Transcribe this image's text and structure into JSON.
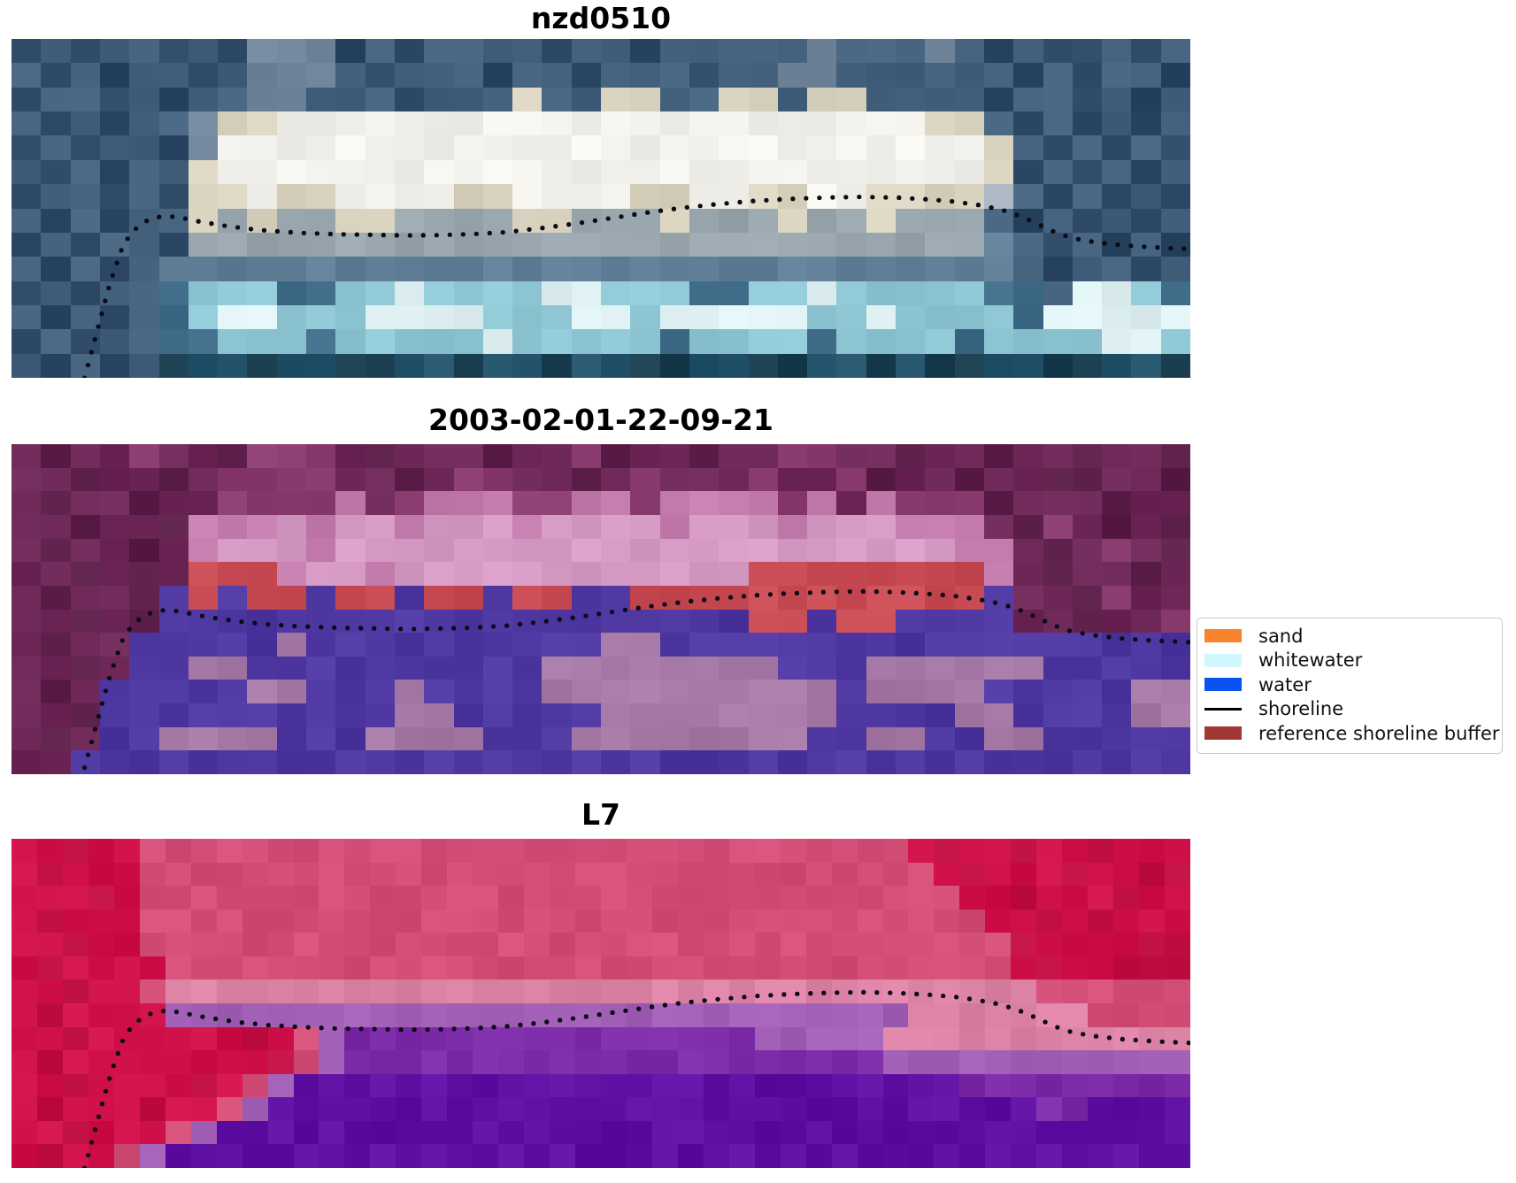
{
  "figure": {
    "background": "#ffffff"
  },
  "panels": [
    {
      "id": "nzd0510",
      "title": "nzd0510",
      "shoreline_y_offset": 0.0,
      "palette": {
        "A": "#2c4763",
        "B": "#44617e",
        "C": "#70859a",
        "D": "#a8b4c0",
        "E": "#d9d2bf",
        "W": "#f2f1ec",
        "G": "#98a5ad",
        "H": "#5f7e95",
        "M": "#3e6c88",
        "Q": "#8ec7d3",
        "L": "#dff0f2",
        "S": "#23536a",
        "T": "#1a3d4f"
      },
      "grid": [
        "ABABBABACCCABABBBBABBABBBBBCBBBCBABAABAB",
        "BABABBABCCCBABBBABBABBBABBCCBBBBBBABABBA",
        "ABBABABBCCBBBABBBEBBEEBBEEBEEBBBBABBABAB",
        "BABABBCEEWWWWWWWWWWWWWWWWWWWWWWEEBABABAB",
        "ABABBACWWWWWWWWWWWWWWWWWWWWWWWWWWEBABABA",
        "BABABBEWWWWWWWWWWWWWWWWWWWWWWWWWWEABABAB",
        "ABBABAEEWEEWWWWEEWWWWEEWWEEWWEEEEDBABABA",
        "BABABBEGEGGEEGGGGEEGGGEGGGEGGEGGGBABABAB",
        "ABABBAGGGGGGGGGGGGGGGGGGGGGGGGGGGHBABABA",
        "BABABHHHHHHHHHHHHHHHHHHHHHHHHHHHHHBABBAB",
        "ABABBMQQQMMQQLQQQQLLQQQMMQQLQQQQQMMBLLQM",
        "BABABMQLLQQQLLLLQQQLLQLLLLLQQLQQQQMLLLLL",
        "ABABBMMQQQMQQQQQLQQQQQMQQQQMQQQQMQQQQLLQ",
        "BABABTSSTSSTTSSTSSTSSTTSSTTSSTSTTSSTTSST"
      ]
    },
    {
      "id": "2003-02-01-22-09-21",
      "title": "2003-02-01-22-09-21",
      "shoreline_y_offset": -0.02,
      "palette": {
        "M": "#6e2857",
        "N": "#5c1f49",
        "O": "#8a3c70",
        "p": "#c47cad",
        "P": "#d59bc5",
        "r": "#c84b53",
        "I": "#4e37a0",
        "V": "#a678a5"
      },
      "grid": [
        "MNMMOMMNOOOMNMMMNMMONMMNMMOOMMNMMNMMNMMN",
        "MMNMMNMOOOOMMNMOOMMNMOMMMOMMONMMNMMNNMMN",
        "MNMMNMMOOOOpMOpppOOppOppppOpMpOOONMMMNMM",
        "MMNMMNpppPpPPpPPPpPPPPpPPPpPPPpppMNOMNMN",
        "MNMMNMpPPPpPPPPPPPPPPPPPPPPPPPPPppMNMOMN",
        "MMNMNMrrrpPPpPPPPPPPPPPPPrrrrrrrrpMNMMNM",
        "MNMMNIrIrrIrrIrrIrrIIrrrrrrrrrrrrIMMNOMM",
        "MMNMNIIIIIIIIIIIIIIIIIIIIrrIrrIIIIMMNMMO",
        "MNMMIIIIIVIIIIIIIIIIVVIIIIIIIIIIIIIIIIII",
        "MMNMIIVVIIIIIIIIIIVVVVVVVVIIIVVVVVVIIIII",
        "MNMIIIIIVVIIIVIIIIVVVVVVVVVVIVVVVIIIIIVV",
        "MMNIIIIIIIIIIVVIIIIIVVVVVVVVIIIIVVIIIIVV",
        "MNMIIVVVVIIIVVVVIIIVVVVVVVVIIVVIIVVIIIII",
        "MMIIIIIIIIIIIIIIIIIIIIIIIIIIIIIIIIIIIIII"
      ]
    },
    {
      "id": "L7",
      "title": "L7",
      "shoreline_y_offset": 0.0,
      "palette": {
        "R": "#d01049",
        "K": "#be0e42",
        "f": "#d24e76",
        "F": "#dc82a4",
        "u": "#a15fb6",
        "U": "#7b2ba8",
        "X": "#5e10a2"
      },
      "grid": [
        "RRKRRffffffffffffffffffffffffffffffRKRRKRRKRR",
        "RKRRRfffffffffffffffffffffffffffffffRKRRRKRRK",
        "RRRKRffffffffffffffffffffffffffffffffRRKRRRKR",
        "RKRRRfffffffffffffffffffffffffffffffffRRKRKRR",
        "RRKRRffffffffffffffffffffffffffffffffffKRRRRK",
        "RKRRRRfffffffffffffffffffffffffffffffffRKRRK",
        "RRKRRfFFFFFFFFFFFFFFFFFFFFFFFFFFFFFFFFFFffffff",
        "RKRRRRuuuuuuuuuuuuuuuuuuuuuuuuuuuuuFFFFFFFffff",
        "RRKRRRRRRKRfuUUUUUUUUUUUUUUUUuuuuuFFFFFF",
        "RKRRRRRRRRKfuUUUUUUUUUUUUUUUUUUUUUuuuuuuu",
        "RRKRRRRKRfuXXXXXXXXXXXXXXXXXXXXXXXXXXUUUUUU",
        "RKRRRKRRfuXXXXXXXXXXXXXXXXXXXXXXXXXXXXXXUUXX",
        "RRKRRRfuXXXXXXXXXXXXXXXXXXXXXXXXXXXXXXXXXXXX",
        "RKRRfuXXXXXXXXXXXXXXXXXXXXXXXXXXXXXXXXXXXXXX"
      ]
    }
  ],
  "shoreline": {
    "color": "#0b0b16",
    "dot_radius": 2.6,
    "dot_spacing": 15,
    "points": [
      [
        0.062,
        1.0
      ],
      [
        0.067,
        0.935
      ],
      [
        0.072,
        0.87
      ],
      [
        0.077,
        0.805
      ],
      [
        0.082,
        0.74
      ],
      [
        0.088,
        0.675
      ],
      [
        0.094,
        0.615
      ],
      [
        0.101,
        0.575
      ],
      [
        0.11,
        0.545
      ],
      [
        0.12,
        0.528
      ],
      [
        0.131,
        0.522
      ],
      [
        0.143,
        0.527
      ],
      [
        0.158,
        0.538
      ],
      [
        0.175,
        0.548
      ],
      [
        0.195,
        0.558
      ],
      [
        0.218,
        0.566
      ],
      [
        0.245,
        0.572
      ],
      [
        0.275,
        0.576
      ],
      [
        0.305,
        0.578
      ],
      [
        0.335,
        0.58
      ],
      [
        0.36,
        0.579
      ],
      [
        0.39,
        0.576
      ],
      [
        0.42,
        0.57
      ],
      [
        0.45,
        0.558
      ],
      [
        0.48,
        0.544
      ],
      [
        0.51,
        0.528
      ],
      [
        0.54,
        0.512
      ],
      [
        0.57,
        0.498
      ],
      [
        0.6,
        0.487
      ],
      [
        0.63,
        0.478
      ],
      [
        0.66,
        0.472
      ],
      [
        0.69,
        0.468
      ],
      [
        0.72,
        0.466
      ],
      [
        0.75,
        0.468
      ],
      [
        0.78,
        0.474
      ],
      [
        0.8,
        0.48
      ],
      [
        0.82,
        0.49
      ],
      [
        0.84,
        0.504
      ],
      [
        0.855,
        0.522
      ],
      [
        0.87,
        0.545
      ],
      [
        0.885,
        0.57
      ],
      [
        0.9,
        0.588
      ],
      [
        0.92,
        0.6
      ],
      [
        0.94,
        0.608
      ],
      [
        0.96,
        0.613
      ],
      [
        0.98,
        0.617
      ],
      [
        1.0,
        0.62
      ]
    ]
  },
  "legend": {
    "entries": [
      {
        "label": "sand",
        "type": "patch",
        "color": "#f9822c"
      },
      {
        "label": "whitewater",
        "type": "patch",
        "color": "#d2f6fd"
      },
      {
        "label": "water",
        "type": "patch",
        "color": "#0b53f1"
      },
      {
        "label": "shoreline",
        "type": "line",
        "color": "#000000"
      },
      {
        "label": "reference shoreline buffer",
        "type": "patch",
        "color": "#a23833"
      }
    ]
  },
  "chart_data": {
    "type": "heatmap",
    "title": "",
    "panels": [
      {
        "title": "nzd0510",
        "content": "RGB satellite image of beach site with dotted detected shoreline"
      },
      {
        "title": "2003-02-01-22-09-21",
        "content": "classified image: indigo water class, red reference shoreline buffer, pink sand band, dotted shoreline"
      },
      {
        "title": "L7",
        "content": "Landsat 7 false-colour composite, red land over purple water, dotted shoreline"
      }
    ],
    "legend_position": "center right",
    "classes": [
      {
        "name": "sand",
        "color": "#f9822c"
      },
      {
        "name": "whitewater",
        "color": "#d2f6fd"
      },
      {
        "name": "water",
        "color": "#0b53f1"
      },
      {
        "name": "shoreline",
        "color": "#000000"
      },
      {
        "name": "reference shoreline buffer",
        "color": "#a23833"
      }
    ]
  }
}
